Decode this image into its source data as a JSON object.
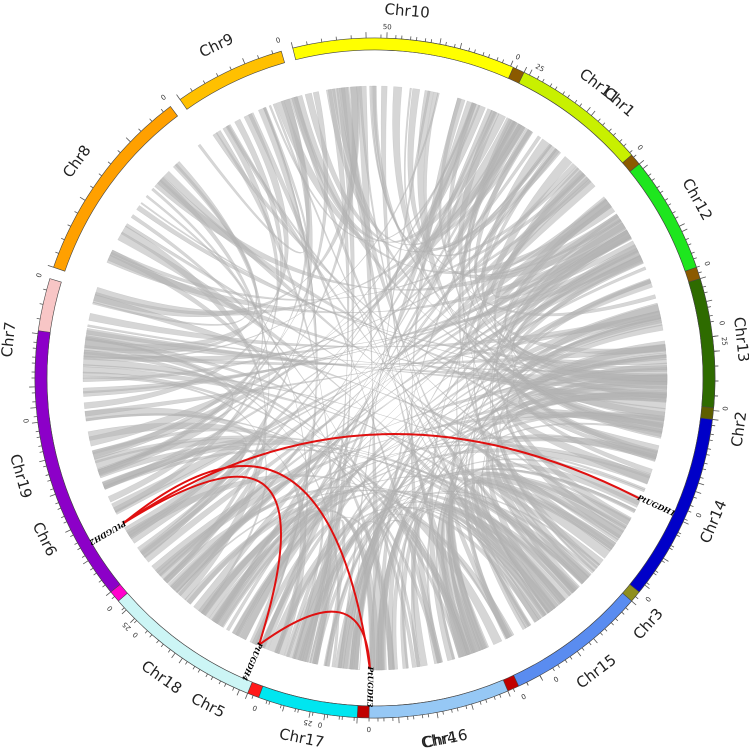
{
  "chromosomes": [
    {
      "name": "Chr1",
      "color": "#8B5A00",
      "ticks": [
        "50",
        "25",
        "0"
      ]
    },
    {
      "name": "Chr2",
      "color": "#5E5E00",
      "ticks": [
        "25",
        "0"
      ]
    },
    {
      "name": "Chr3",
      "color": "#8F8F1E",
      "ticks": [
        "0"
      ]
    },
    {
      "name": "Chr4",
      "color": "#C00000",
      "ticks": [
        "0"
      ]
    },
    {
      "name": "Chr5",
      "color": "#FF1A1A",
      "ticks": [
        "25",
        "0"
      ]
    },
    {
      "name": "Chr6",
      "color": "#FF00CC",
      "ticks": [
        "25",
        "0"
      ]
    },
    {
      "name": "Chr7",
      "color": "#F8C6C6",
      "ticks": [
        "0"
      ]
    },
    {
      "name": "Chr8",
      "color": "#FFA000",
      "ticks": [
        "0"
      ]
    },
    {
      "name": "Chr9",
      "color": "#FFC000",
      "ticks": [
        "0"
      ]
    },
    {
      "name": "Chr10",
      "color": "#FFFF00",
      "ticks": [
        "0"
      ]
    },
    {
      "name": "Chr11",
      "color": "#C8F000",
      "ticks": [
        "0"
      ]
    },
    {
      "name": "Chr12",
      "color": "#1EE61E",
      "ticks": [
        "0"
      ]
    },
    {
      "name": "Chr13",
      "color": "#2E6B00",
      "ticks": [
        "0"
      ]
    },
    {
      "name": "Chr14",
      "color": "#0000C8",
      "ticks": [
        "0"
      ]
    },
    {
      "name": "Chr15",
      "color": "#5A8CF0",
      "ticks": [
        "0"
      ]
    },
    {
      "name": "Chr16",
      "color": "#96C8F5",
      "ticks": [
        "0"
      ]
    },
    {
      "name": "Chr17",
      "color": "#00E6F0",
      "ticks": [
        "0"
      ]
    },
    {
      "name": "Chr18",
      "color": "#CCF5F5",
      "ticks": [
        "0"
      ]
    },
    {
      "name": "Chr19",
      "color": "#8C00C8",
      "ticks": []
    }
  ],
  "genes": [
    {
      "name": "PtUGDH1"
    },
    {
      "name": "PtUGDH2"
    },
    {
      "name": "PtUGDH3"
    },
    {
      "name": "PtUGDH4"
    }
  ],
  "colors": {
    "highlight_link": "#E01010",
    "background_link": "#B4B4B4"
  }
}
